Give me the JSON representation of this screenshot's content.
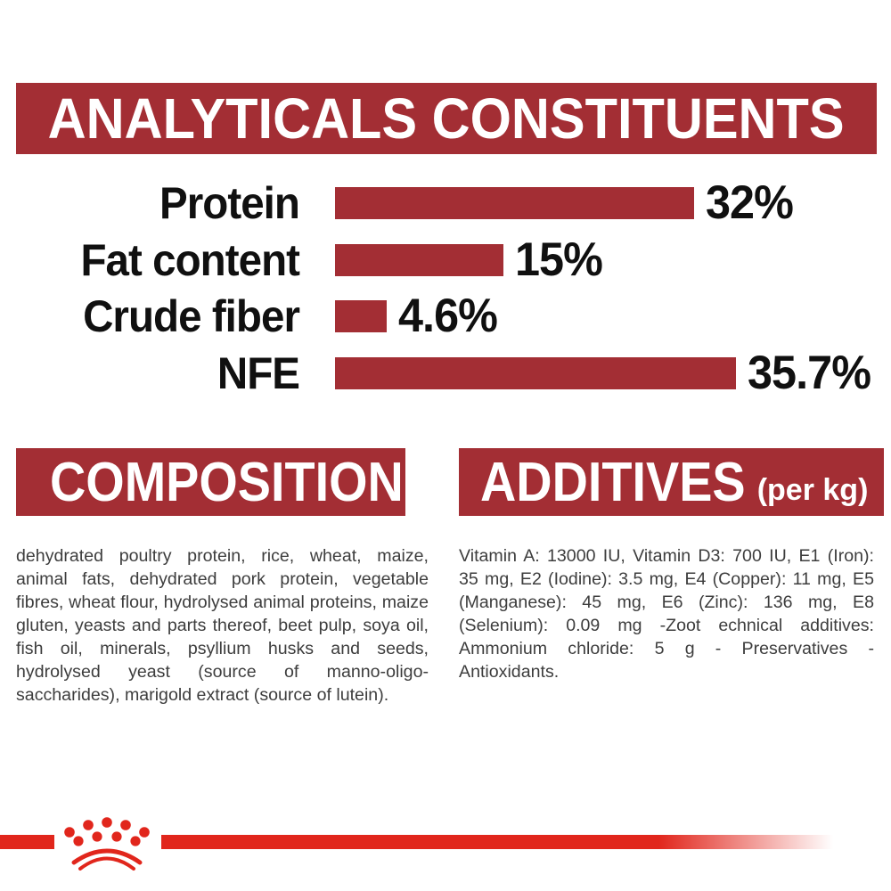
{
  "header": {
    "title": "ANALYTICALS CONSTITUENTS"
  },
  "chart_data": {
    "type": "bar",
    "orientation": "horizontal",
    "title": "ANALYTICALS CONSTITUENTS",
    "categories": [
      "Protein",
      "Fat content",
      "Crude fiber",
      "NFE"
    ],
    "values": [
      32,
      15,
      4.6,
      35.7
    ],
    "value_labels": [
      "32%",
      "15%",
      "4.6%",
      "35.7%"
    ],
    "unit": "percent",
    "xlim": [
      0,
      36
    ],
    "grid": "off",
    "legend": "none",
    "bar_color": "#A32E34"
  },
  "composition": {
    "title": "COMPOSITION",
    "body": "dehydrated poultry protein, rice, wheat, maize, animal fats, dehydrated pork protein, vegetable fibres, wheat flour, hydrolysed animal proteins, maize gluten, yeasts and parts thereof, beet pulp, soya oil, fish oil, minerals, psyllium husks and seeds, hydrolysed yeast (source of manno-oligo-saccharides), marigold extract (source of lutein)."
  },
  "additives": {
    "title": "ADDITIVES",
    "subtitle": "(per kg)",
    "body": "Vitamin A: 13000 IU, Vitamin D3: 700 IU, E1 (Iron): 35 mg, E2 (Iodine): 3.5 mg, E4 (Copper): 11 mg, E5 (Manganese): 45 mg, E6 (Zinc): 136 mg, E8 (Selenium): 0.09 mg -Zoot echnical additives: Ammonium chloride: 5 g - Preservatives - Antioxidants."
  },
  "branding": {
    "logo": "royal-canin-crown",
    "stripe_color": "#E1261C"
  },
  "colors": {
    "panel_red": "#A32E34",
    "accent_red": "#E1261C",
    "heading_text": "#FFFFFF",
    "label_text": "#101010",
    "body_text": "#3D3D3D",
    "background": "#FFFFFF"
  }
}
